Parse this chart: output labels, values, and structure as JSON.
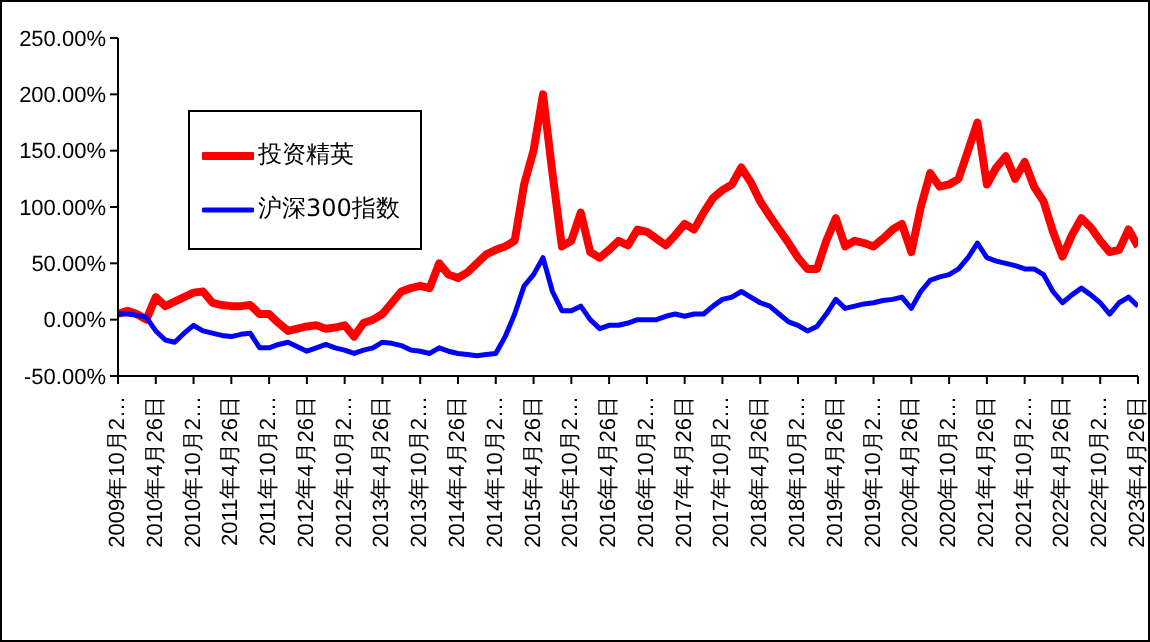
{
  "chart_data": {
    "type": "line",
    "categories": [
      "2009年10月2…",
      null,
      null,
      null,
      "2010年4月26日",
      null,
      null,
      null,
      "2010年10月2…",
      null,
      null,
      null,
      "2011年4月26日",
      null,
      null,
      null,
      "2011年10月2…",
      null,
      null,
      null,
      "2012年4月26日",
      null,
      null,
      null,
      "2012年10月2…",
      null,
      null,
      null,
      "2013年4月26日",
      null,
      null,
      null,
      "2013年10月2…",
      null,
      null,
      null,
      "2014年4月26日",
      null,
      null,
      null,
      "2014年10月2…",
      null,
      null,
      null,
      "2015年4月26日",
      null,
      null,
      null,
      "2015年10月2…",
      null,
      null,
      null,
      "2016年4月26日",
      null,
      null,
      null,
      "2016年10月2…",
      null,
      null,
      null,
      "2017年4月26日",
      null,
      null,
      null,
      "2017年10月2…",
      null,
      null,
      null,
      "2018年4月26日",
      null,
      null,
      null,
      "2018年10月2…",
      null,
      null,
      null,
      "2019年4月26日",
      null,
      null,
      null,
      "2019年10月2…",
      null,
      null,
      null,
      "2020年4月26日",
      null,
      null,
      null,
      "2020年10月2…",
      null,
      null,
      null,
      "2021年4月26日",
      null,
      null,
      null,
      "2021年10月2…",
      null,
      null,
      null,
      "2022年4月26日",
      null,
      null,
      null,
      "2022年10月2…",
      null,
      null,
      null,
      "2023年4月26日"
    ],
    "series": [
      {
        "name": "投资精英",
        "color": "#ff0000",
        "values": [
          5,
          8,
          5,
          0,
          20,
          12,
          16,
          20,
          24,
          25,
          15,
          13,
          12,
          12,
          13,
          5,
          5,
          -3,
          -10,
          -8,
          -6,
          -5,
          -8,
          -7,
          -5,
          -15,
          -3,
          0,
          5,
          15,
          25,
          28,
          30,
          28,
          50,
          40,
          37,
          42,
          50,
          58,
          62,
          65,
          70,
          120,
          150,
          200,
          130,
          65,
          70,
          95,
          60,
          55,
          62,
          70,
          66,
          80,
          78,
          72,
          66,
          75,
          85,
          80,
          95,
          108,
          115,
          120,
          135,
          122,
          105,
          92,
          80,
          68,
          55,
          45,
          45,
          70,
          90,
          65,
          70,
          68,
          65,
          72,
          80,
          85,
          60,
          100,
          130,
          118,
          120,
          125,
          150,
          175,
          120,
          135,
          145,
          125,
          140,
          118,
          105,
          78,
          56,
          75,
          90,
          82,
          70,
          60,
          62,
          80,
          65
        ]
      },
      {
        "name": "沪深300指数",
        "color": "#0000ff",
        "values": [
          5,
          5,
          4,
          2,
          -10,
          -18,
          -20,
          -12,
          -5,
          -10,
          -12,
          -14,
          -15,
          -13,
          -12,
          -25,
          -25,
          -22,
          -20,
          -24,
          -28,
          -25,
          -22,
          -25,
          -27,
          -30,
          -27,
          -25,
          -20,
          -21,
          -23,
          -27,
          -28,
          -30,
          -25,
          -28,
          -30,
          -31,
          -32,
          -31,
          -30,
          -15,
          5,
          30,
          40,
          55,
          25,
          8,
          8,
          12,
          0,
          -8,
          -5,
          -5,
          -3,
          0,
          0,
          0,
          3,
          5,
          3,
          5,
          5,
          12,
          18,
          20,
          25,
          20,
          15,
          12,
          5,
          -2,
          -5,
          -10,
          -6,
          5,
          18,
          10,
          12,
          14,
          15,
          17,
          18,
          20,
          10,
          25,
          35,
          38,
          40,
          45,
          55,
          68,
          55,
          52,
          50,
          48,
          45,
          45,
          40,
          25,
          15,
          22,
          28,
          22,
          15,
          5,
          15,
          20,
          12
        ]
      }
    ],
    "ylim": [
      -50,
      250
    ],
    "yticks": [
      {
        "value": -50,
        "label": "-50.00%"
      },
      {
        "value": 0,
        "label": "0.00%"
      },
      {
        "value": 50,
        "label": "50.00%"
      },
      {
        "value": 100,
        "label": "100.00%"
      },
      {
        "value": 150,
        "label": "150.00%"
      },
      {
        "value": 200,
        "label": "200.00%"
      },
      {
        "value": 250,
        "label": "250.00%"
      }
    ],
    "legend": "top left",
    "grid": false,
    "marker": "none",
    "line_style": "solid"
  }
}
